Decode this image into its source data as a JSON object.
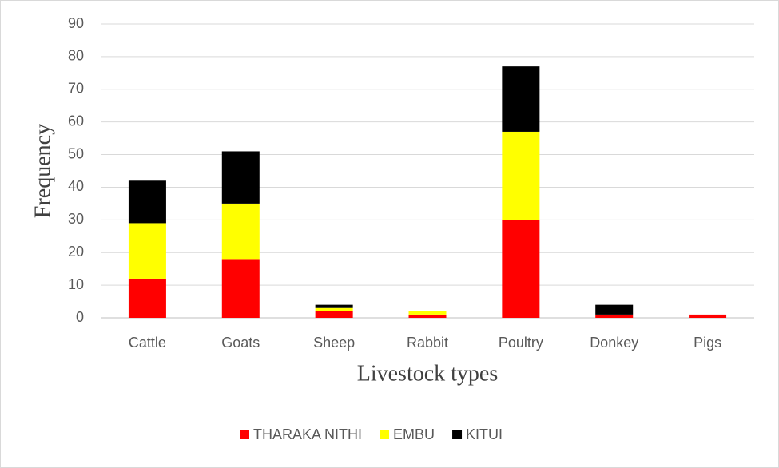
{
  "chart_data": {
    "type": "stacked_bar",
    "xlabel": "Livestock types",
    "ylabel": "Frequency",
    "categories": [
      "Cattle",
      "Goats",
      "Sheep",
      "Rabbit",
      "Poultry",
      "Donkey",
      "Pigs"
    ],
    "series": [
      {
        "name": "THARAKA NITHI",
        "color": "#ff0000",
        "values": [
          12,
          18,
          2,
          1,
          30,
          1,
          1
        ]
      },
      {
        "name": "EMBU",
        "color": "#ffff00",
        "values": [
          17,
          17,
          1,
          1,
          27,
          0,
          0
        ]
      },
      {
        "name": "KITUI",
        "color": "#000000",
        "values": [
          13,
          16,
          1,
          0,
          20,
          3,
          0
        ]
      }
    ],
    "ylim": [
      0,
      90
    ],
    "yticks": [
      0,
      10,
      20,
      30,
      40,
      50,
      60,
      70,
      80,
      90
    ],
    "grid": true
  }
}
